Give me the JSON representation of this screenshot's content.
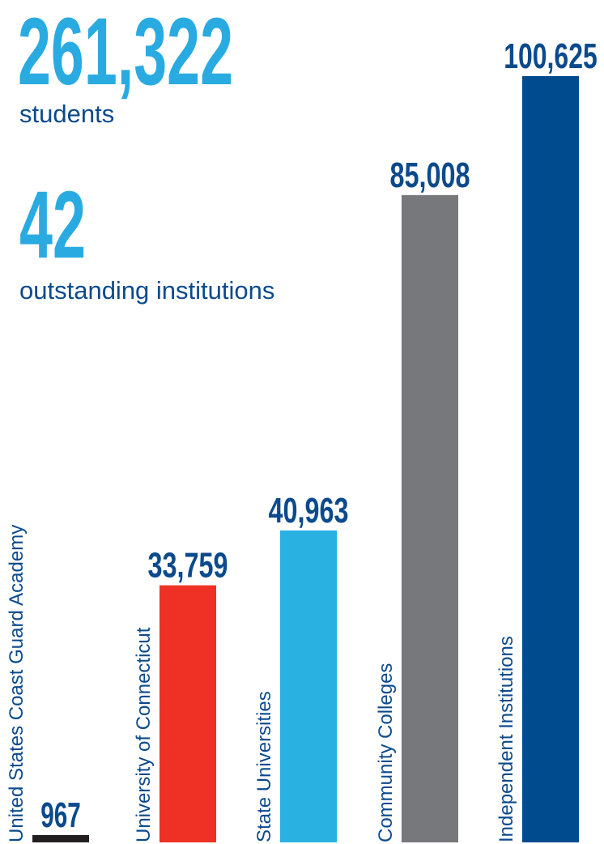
{
  "chart_data": {
    "type": "bar",
    "stats": [
      {
        "number": "261,322",
        "caption": "students"
      },
      {
        "number": "42",
        "caption": "outstanding institutions"
      }
    ],
    "categories": [
      "United States Coast Guard Academy",
      "University of Connecticut",
      "State Universities",
      "Community Colleges",
      "Independent Institutions"
    ],
    "values": [
      967,
      33759,
      40963,
      85008,
      100625
    ],
    "value_labels": [
      "967",
      "33,759",
      "40,963",
      "85,008",
      "100,625"
    ],
    "colors": [
      "#231f20",
      "#ee3124",
      "#29b1e1",
      "#77787b",
      "#004b8d"
    ]
  }
}
